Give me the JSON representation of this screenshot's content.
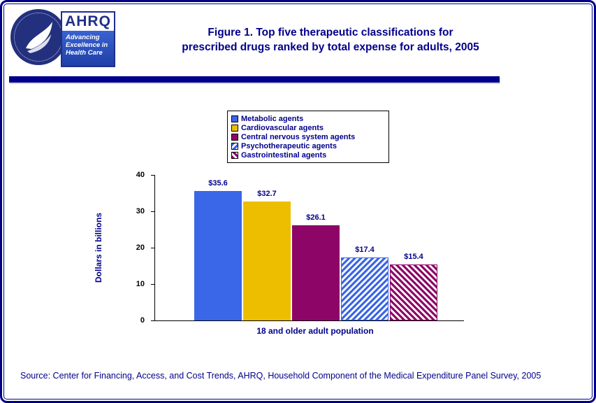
{
  "header": {
    "title_line1": "Figure 1. Top five therapeutic classifications for",
    "title_line2": "prescribed drugs ranked by total expense for adults, 2005",
    "ahrq": {
      "acronym": "AHRQ",
      "tagline_line1": "Advancing",
      "tagline_line2": "Excellence in",
      "tagline_line3": "Health Care"
    }
  },
  "chart_data": {
    "type": "bar",
    "title": "Figure 1. Top five therapeutic classifications for prescribed drugs ranked by total expense for adults, 2005",
    "xlabel": "18 and older adult population",
    "ylabel": "Dollars in billions",
    "ylim": [
      0,
      40
    ],
    "yticks": [
      0,
      10,
      20,
      30,
      40
    ],
    "grid": false,
    "legend_position": "top-center",
    "categories": [
      "Metabolic agents",
      "Cardiovascular agents",
      "Central nervous system agents",
      "Psychotherapeutic agents",
      "Gastrointestinal agents"
    ],
    "values": [
      35.6,
      32.7,
      26.1,
      17.4,
      15.4
    ],
    "value_labels": [
      "$35.6",
      "$32.7",
      "$26.1",
      "$17.4",
      "$15.4"
    ],
    "series_styles": [
      {
        "fill": "#3A66E8",
        "pattern": "solid",
        "angle": 0
      },
      {
        "fill": "#EDBE00",
        "pattern": "solid",
        "angle": 0
      },
      {
        "fill": "#8E0568",
        "pattern": "solid",
        "angle": 0
      },
      {
        "fill": "#3A66E8",
        "pattern": "hatch",
        "angle": 135
      },
      {
        "fill": "#8E0568",
        "pattern": "hatch",
        "angle": 45
      }
    ]
  },
  "footer": {
    "source": "Source: Center for Financing, Access, and Cost Trends, AHRQ, Household Component of the Medical Expenditure Panel Survey, 2005"
  },
  "colors": {
    "navy": "#00008B",
    "bar_blue": "#3A66E8",
    "bar_gold": "#EDBE00",
    "bar_purple": "#8E0568",
    "frame": "#00008B"
  }
}
